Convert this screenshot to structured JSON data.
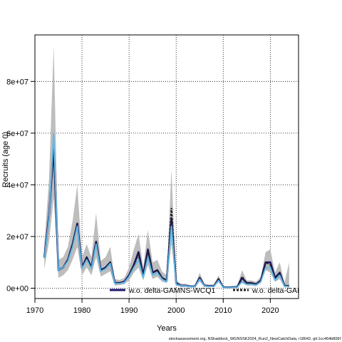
{
  "chart_data": {
    "type": "line",
    "xlabel": "Years",
    "ylabel": "Recruits (age 0)",
    "xlim": [
      1970,
      2026
    ],
    "ylim": [
      -4000000,
      98000000
    ],
    "xticks": [
      1970,
      1980,
      1990,
      2000,
      2010,
      2020
    ],
    "yticks": [
      0,
      20000000,
      40000000,
      60000000,
      80000000
    ],
    "ytick_labels": [
      "0e+00",
      "2e+07",
      "4e+07",
      "6e+07",
      "8e+07"
    ],
    "grid": true,
    "x": [
      1972,
      1973,
      1974,
      1975,
      1976,
      1977,
      1978,
      1979,
      1980,
      1981,
      1982,
      1983,
      1984,
      1985,
      1986,
      1987,
      1988,
      1989,
      1990,
      1991,
      1992,
      1993,
      1994,
      1995,
      1996,
      1997,
      1998,
      1999,
      2000,
      2001,
      2002,
      2003,
      2004,
      2005,
      2006,
      2007,
      2008,
      2009,
      2010,
      2011,
      2012,
      2013,
      2014,
      2015,
      2016,
      2017,
      2018,
      2019,
      2020,
      2021,
      2022,
      2023,
      2024
    ],
    "series": [
      {
        "name": "w.o. delta-GAMNS-WCQ1",
        "color": "#1a1570",
        "values": [
          12000000,
          28000000,
          55000000,
          7000000,
          8000000,
          11000000,
          17000000,
          25000000,
          8000000,
          12000000,
          8000000,
          18000000,
          7000000,
          8000000,
          10000000,
          2000000,
          2000000,
          2500000,
          5000000,
          9000000,
          14000000,
          5000000,
          15000000,
          6000000,
          7000000,
          4000000,
          3000000,
          27000000,
          2000000,
          1000000,
          1000000,
          700000,
          700000,
          4000000,
          1000000,
          800000,
          800000,
          3500000,
          400000,
          300000,
          400000,
          500000,
          4000000,
          2000000,
          2000000,
          1500000,
          3000000,
          10000000,
          10000000,
          4000000,
          6000000,
          1000000,
          800000
        ]
      },
      {
        "name": "w.o. delta-GAI",
        "color": "#222222",
        "values": [
          12000000,
          28000000,
          54000000,
          7000000,
          8000000,
          11000000,
          17000000,
          25000000,
          8000000,
          12000000,
          8000000,
          18000000,
          7000000,
          8000000,
          10000000,
          2000000,
          2000000,
          2500000,
          5000000,
          9000000,
          13000000,
          5000000,
          15000000,
          6000000,
          7000000,
          4000000,
          3000000,
          31000000,
          2000000,
          1000000,
          1000000,
          700000,
          700000,
          4000000,
          1000000,
          800000,
          800000,
          3500000,
          400000,
          300000,
          400000,
          500000,
          4500000,
          2000000,
          2000000,
          1500000,
          3000000,
          10000000,
          9000000,
          4000000,
          6000000,
          1000000,
          800000
        ]
      }
    ],
    "reference_line": {
      "color": "#5fb8e8",
      "values": [
        11500000,
        27000000,
        60000000,
        7000000,
        8000000,
        10500000,
        16000000,
        24000000,
        7500000,
        11000000,
        7500000,
        17000000,
        6500000,
        7500000,
        9500000,
        1800000,
        1800000,
        2200000,
        4500000,
        8000000,
        11000000,
        4000000,
        12000000,
        5000000,
        6000000,
        3500000,
        2500000,
        24000000,
        1500000,
        900000,
        900000,
        600000,
        600000,
        3500000,
        900000,
        700000,
        700000,
        3000000,
        300000,
        250000,
        300000,
        400000,
        2500000,
        1500000,
        1500000,
        1200000,
        2500000,
        8000000,
        8000000,
        3000000,
        5000000,
        800000,
        700000
      ]
    },
    "ci_band": {
      "color": "#bdbdbd",
      "lower": [
        7500000,
        18000000,
        35000000,
        4000000,
        5000000,
        7000000,
        11000000,
        16000000,
        5000000,
        8000000,
        5000000,
        12000000,
        4500000,
        5500000,
        6500000,
        1000000,
        1200000,
        1500000,
        3000000,
        6000000,
        8000000,
        3000000,
        9000000,
        3500000,
        4500000,
        2500000,
        2000000,
        17000000,
        1000000,
        500000,
        500000,
        300000,
        300000,
        2500000,
        500000,
        400000,
        400000,
        2200000,
        100000,
        100000,
        150000,
        200000,
        2000000,
        1000000,
        1000000,
        800000,
        2000000,
        7000000,
        6000000,
        2500000,
        3500000,
        300000,
        300000
      ],
      "upper": [
        17000000,
        42000000,
        94000000,
        11000000,
        12000000,
        16000000,
        26000000,
        40000000,
        12000000,
        17000000,
        12000000,
        29000000,
        10500000,
        12000000,
        16000000,
        3500000,
        3200000,
        4000000,
        8000000,
        15000000,
        21000000,
        8000000,
        22500000,
        10000000,
        11000000,
        6500000,
        5000000,
        46000000,
        3000000,
        1700000,
        1700000,
        1200000,
        1200000,
        6000000,
        1800000,
        1400000,
        1400000,
        5000000,
        800000,
        600000,
        800000,
        1000000,
        7000000,
        3000000,
        3000000,
        2500000,
        4500000,
        14000000,
        15000000,
        6000000,
        10000000,
        2000000,
        10000000
      ]
    }
  },
  "legend": [
    {
      "label": "w.o. delta-GAMNS-WCQ1",
      "color": "#1a1570",
      "style": "solid"
    },
    {
      "label": "w.o. delta-GAI",
      "color": "#222222",
      "style": "dashed"
    }
  ],
  "caption": "stockassessment.org, NShaddock_WGNSSK2024_Run2_NewCatchData, r18042, git:1cc464b806f"
}
